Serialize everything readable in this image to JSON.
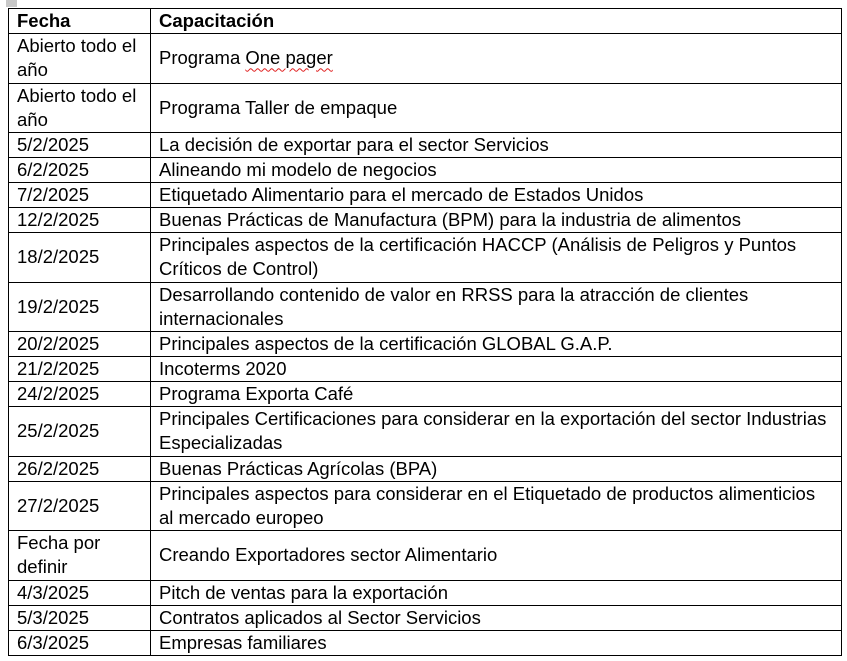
{
  "table": {
    "headers": [
      "Fecha",
      "Capacitación"
    ],
    "rows": [
      {
        "fecha": "Abierto todo el año",
        "capacitacion": "Programa One pager",
        "double": true
      },
      {
        "fecha": "Abierto todo el año",
        "capacitacion": "Programa Taller de empaque",
        "double": true
      },
      {
        "fecha": "5/2/2025",
        "capacitacion": "La decisión de exportar para el sector Servicios"
      },
      {
        "fecha": "6/2/2025",
        "capacitacion": "Alineando mi modelo de negocios"
      },
      {
        "fecha": "7/2/2025",
        "capacitacion": "Etiquetado Alimentario para el mercado de Estados Unidos"
      },
      {
        "fecha": "12/2/2025",
        "capacitacion": "Buenas Prácticas de Manufactura (BPM) para la industria de alimentos"
      },
      {
        "fecha": "18/2/2025",
        "capacitacion": "Principales aspectos de la certificación HACCP (Análisis de Peligros y Puntos Críticos de Control)",
        "double": true
      },
      {
        "fecha": "19/2/2025",
        "capacitacion": "Desarrollando contenido de valor en RRSS para la atracción de clientes internacionales",
        "double": true
      },
      {
        "fecha": "20/2/2025",
        "capacitacion": "Principales aspectos de la certificación GLOBAL G.A.P."
      },
      {
        "fecha": "21/2/2025",
        "capacitacion": "Incoterms 2020"
      },
      {
        "fecha": "24/2/2025",
        "capacitacion": "Programa Exporta Café"
      },
      {
        "fecha": "25/2/2025",
        "capacitacion": "Principales Certificaciones para considerar en la exportación del sector Industrias Especializadas",
        "double": true
      },
      {
        "fecha": "26/2/2025",
        "capacitacion": "Buenas Prácticas Agrícolas (BPA)"
      },
      {
        "fecha": "27/2/2025",
        "capacitacion": "Principales aspectos para considerar en el Etiquetado de productos alimenticios al mercado europeo",
        "double": true
      },
      {
        "fecha": "Fecha por definir",
        "capacitacion": "Creando Exportadores sector Alimentario",
        "double": true
      },
      {
        "fecha": "4/3/2025",
        "capacitacion": "Pitch de ventas para la exportación"
      },
      {
        "fecha": "5/3/2025",
        "capacitacion": "Contratos aplicados al Sector Servicios"
      },
      {
        "fecha": "6/3/2025",
        "capacitacion": "Empresas familiares"
      }
    ]
  }
}
